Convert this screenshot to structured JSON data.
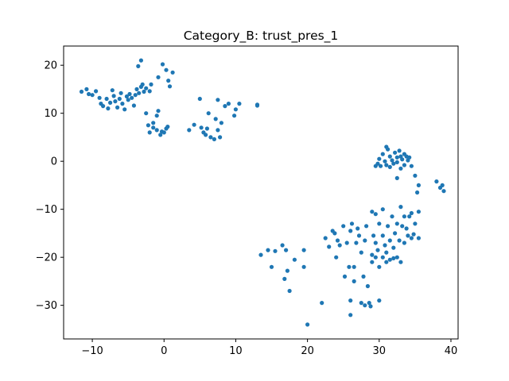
{
  "chart_data": {
    "type": "scatter",
    "title": "Category_B: trust_pres_1",
    "xlabel": "",
    "ylabel": "",
    "xlim": [
      -14,
      41
    ],
    "ylim": [
      -37,
      24
    ],
    "xticks": [
      -10,
      0,
      10,
      20,
      30,
      40
    ],
    "yticks": [
      20,
      10,
      0,
      -10,
      -20,
      -30
    ],
    "xtick_labels": [
      "−10",
      "0",
      "10",
      "20",
      "30",
      "40"
    ],
    "ytick_labels": [
      "20",
      "10",
      "0",
      "−10",
      "−20",
      "−30"
    ],
    "grid": false,
    "legend": "none",
    "marker_color": "#1f77b4",
    "series": [
      {
        "points": [
          [
            -11.5,
            14.5
          ],
          [
            -10.8,
            15
          ],
          [
            -10.5,
            14
          ],
          [
            -10,
            13.8
          ],
          [
            -9.5,
            14.6
          ],
          [
            -9,
            13.2
          ],
          [
            -8.8,
            12
          ],
          [
            -8.5,
            11.5
          ],
          [
            -8,
            13
          ],
          [
            -7.8,
            11
          ],
          [
            -7.5,
            12.2
          ],
          [
            -7.2,
            14.8
          ],
          [
            -7,
            13.6
          ],
          [
            -6.8,
            12.5
          ],
          [
            -6.5,
            11.2
          ],
          [
            -6.2,
            13
          ],
          [
            -6,
            14.2
          ],
          [
            -5.8,
            12
          ],
          [
            -5.5,
            10.8
          ],
          [
            -5.2,
            13.5
          ],
          [
            -5,
            12.8
          ],
          [
            -4.8,
            14
          ],
          [
            -4.5,
            13.2
          ],
          [
            -4.2,
            11.6
          ],
          [
            -4,
            13.8
          ],
          [
            -3.8,
            15
          ],
          [
            -3.5,
            14.2
          ],
          [
            -3.2,
            15.5
          ],
          [
            -3,
            16
          ],
          [
            -2.8,
            14.5
          ],
          [
            -2.5,
            15.2
          ],
          [
            -2,
            14.6
          ],
          [
            -1.8,
            16
          ],
          [
            -3.6,
            19.8
          ],
          [
            -3.2,
            21
          ],
          [
            -0.8,
            17.5
          ],
          [
            -0.2,
            20.2
          ],
          [
            0.3,
            19
          ],
          [
            0.6,
            16.8
          ],
          [
            0.8,
            15.6
          ],
          [
            1.2,
            18.5
          ],
          [
            -2.5,
            10
          ],
          [
            -2.2,
            7.5
          ],
          [
            -2,
            6
          ],
          [
            -1.5,
            8
          ],
          [
            -1.5,
            7
          ],
          [
            -1,
            9.5
          ],
          [
            -1,
            6.5
          ],
          [
            -0.8,
            10.5
          ],
          [
            -0.5,
            5.5
          ],
          [
            -0.3,
            6.2
          ],
          [
            0,
            6
          ],
          [
            0.3,
            6.8
          ],
          [
            0.5,
            7.2
          ],
          [
            3.5,
            6.5
          ],
          [
            4.2,
            7.6
          ],
          [
            5,
            13
          ],
          [
            5.2,
            7
          ],
          [
            5.5,
            6
          ],
          [
            5.8,
            5.5
          ],
          [
            6,
            6.8
          ],
          [
            6.2,
            10
          ],
          [
            6.5,
            5
          ],
          [
            7,
            4.6
          ],
          [
            7.2,
            8.8
          ],
          [
            7.5,
            12.8
          ],
          [
            7.5,
            6.5
          ],
          [
            7.8,
            5
          ],
          [
            8,
            8
          ],
          [
            8.5,
            11.5
          ],
          [
            9,
            12
          ],
          [
            9.8,
            9.5
          ],
          [
            10,
            10.8
          ],
          [
            10.5,
            12
          ],
          [
            13,
            11.6
          ],
          [
            13,
            11.8
          ],
          [
            13.5,
            -19.5
          ],
          [
            14.5,
            -18.5
          ],
          [
            15,
            -22
          ],
          [
            15.5,
            -18.7
          ],
          [
            16.5,
            -17.5
          ],
          [
            16.8,
            -24.5
          ],
          [
            17,
            -18.5
          ],
          [
            17.2,
            -22.8
          ],
          [
            17.5,
            -27
          ],
          [
            18.2,
            -20.5
          ],
          [
            19.5,
            -18.5
          ],
          [
            19.5,
            -22
          ],
          [
            20,
            -34
          ],
          [
            22,
            -29.5
          ],
          [
            22.5,
            -16
          ],
          [
            23,
            -17.8
          ],
          [
            23.5,
            -14.5
          ],
          [
            23.8,
            -15
          ],
          [
            24.2,
            -16.5
          ],
          [
            24.5,
            -17.5
          ],
          [
            24,
            -20
          ],
          [
            25,
            -13.5
          ],
          [
            25.2,
            -24
          ],
          [
            25.5,
            -17
          ],
          [
            25.8,
            -22
          ],
          [
            26,
            -14.5
          ],
          [
            26,
            -29
          ],
          [
            26,
            -32
          ],
          [
            26.2,
            -13
          ],
          [
            26.5,
            -22
          ],
          [
            26.5,
            -25
          ],
          [
            26.8,
            -17
          ],
          [
            27,
            -14
          ],
          [
            27.2,
            -15.5
          ],
          [
            27.5,
            -19
          ],
          [
            27.5,
            -29.5
          ],
          [
            27.8,
            -24
          ],
          [
            28,
            -30
          ],
          [
            28,
            -16.5
          ],
          [
            28.2,
            -13.5
          ],
          [
            28.4,
            -26
          ],
          [
            28.6,
            -29.5
          ],
          [
            28.8,
            -30.2
          ],
          [
            29,
            -10.5
          ],
          [
            29,
            -21
          ],
          [
            29,
            -19.5
          ],
          [
            29.2,
            -15.5
          ],
          [
            29.5,
            -17
          ],
          [
            29.5,
            -20
          ],
          [
            29.5,
            -11
          ],
          [
            29.8,
            -18.5
          ],
          [
            30,
            -13
          ],
          [
            30,
            -22
          ],
          [
            30,
            -29
          ],
          [
            30.5,
            -10
          ],
          [
            30.5,
            -15.5
          ],
          [
            30.5,
            -20
          ],
          [
            30.8,
            -17.5
          ],
          [
            31,
            -19
          ],
          [
            31,
            -21
          ],
          [
            31.2,
            -13.5
          ],
          [
            31.5,
            -16.5
          ],
          [
            31.5,
            -20.5
          ],
          [
            31.8,
            -11.5
          ],
          [
            32,
            -18
          ],
          [
            32,
            -20.2
          ],
          [
            32.2,
            -15
          ],
          [
            32.5,
            -13
          ],
          [
            32.5,
            -20
          ],
          [
            32.8,
            -16.5
          ],
          [
            33,
            -9.5
          ],
          [
            33,
            -21
          ],
          [
            33.2,
            -13.5
          ],
          [
            33.5,
            -17
          ],
          [
            33.5,
            -11.5
          ],
          [
            33.8,
            -14
          ],
          [
            34,
            -15.5
          ],
          [
            34.2,
            -11.5
          ],
          [
            34.5,
            -10.8
          ],
          [
            34.5,
            -16
          ],
          [
            34.8,
            -15.2
          ],
          [
            35,
            -13
          ],
          [
            35.5,
            -16
          ],
          [
            35.5,
            -10.5
          ],
          [
            29.5,
            -1
          ],
          [
            29.8,
            -0.5
          ],
          [
            30,
            0.5
          ],
          [
            30.2,
            -1
          ],
          [
            30.5,
            1.5
          ],
          [
            30.8,
            0
          ],
          [
            31,
            3
          ],
          [
            31,
            -0.8
          ],
          [
            31.2,
            2.5
          ],
          [
            31.5,
            1
          ],
          [
            31.5,
            -1.2
          ],
          [
            31.8,
            0.2
          ],
          [
            32,
            -0.5
          ],
          [
            32.2,
            1.8
          ],
          [
            32.5,
            0.8
          ],
          [
            32.5,
            -0.2
          ],
          [
            32.8,
            2.2
          ],
          [
            33,
            1
          ],
          [
            33,
            -1.5
          ],
          [
            33.2,
            0.4
          ],
          [
            33.5,
            1.5
          ],
          [
            33.5,
            -0.8
          ],
          [
            33.8,
            1
          ],
          [
            34,
            0.2
          ],
          [
            34.2,
            0.8
          ],
          [
            32.5,
            -3.5
          ],
          [
            34.5,
            -1
          ],
          [
            35,
            -3
          ],
          [
            35.5,
            -5
          ],
          [
            35.3,
            -6.5
          ],
          [
            38,
            -4.2
          ],
          [
            38.5,
            -5.5
          ],
          [
            39,
            -6.2
          ],
          [
            38.8,
            -5
          ]
        ]
      }
    ]
  }
}
